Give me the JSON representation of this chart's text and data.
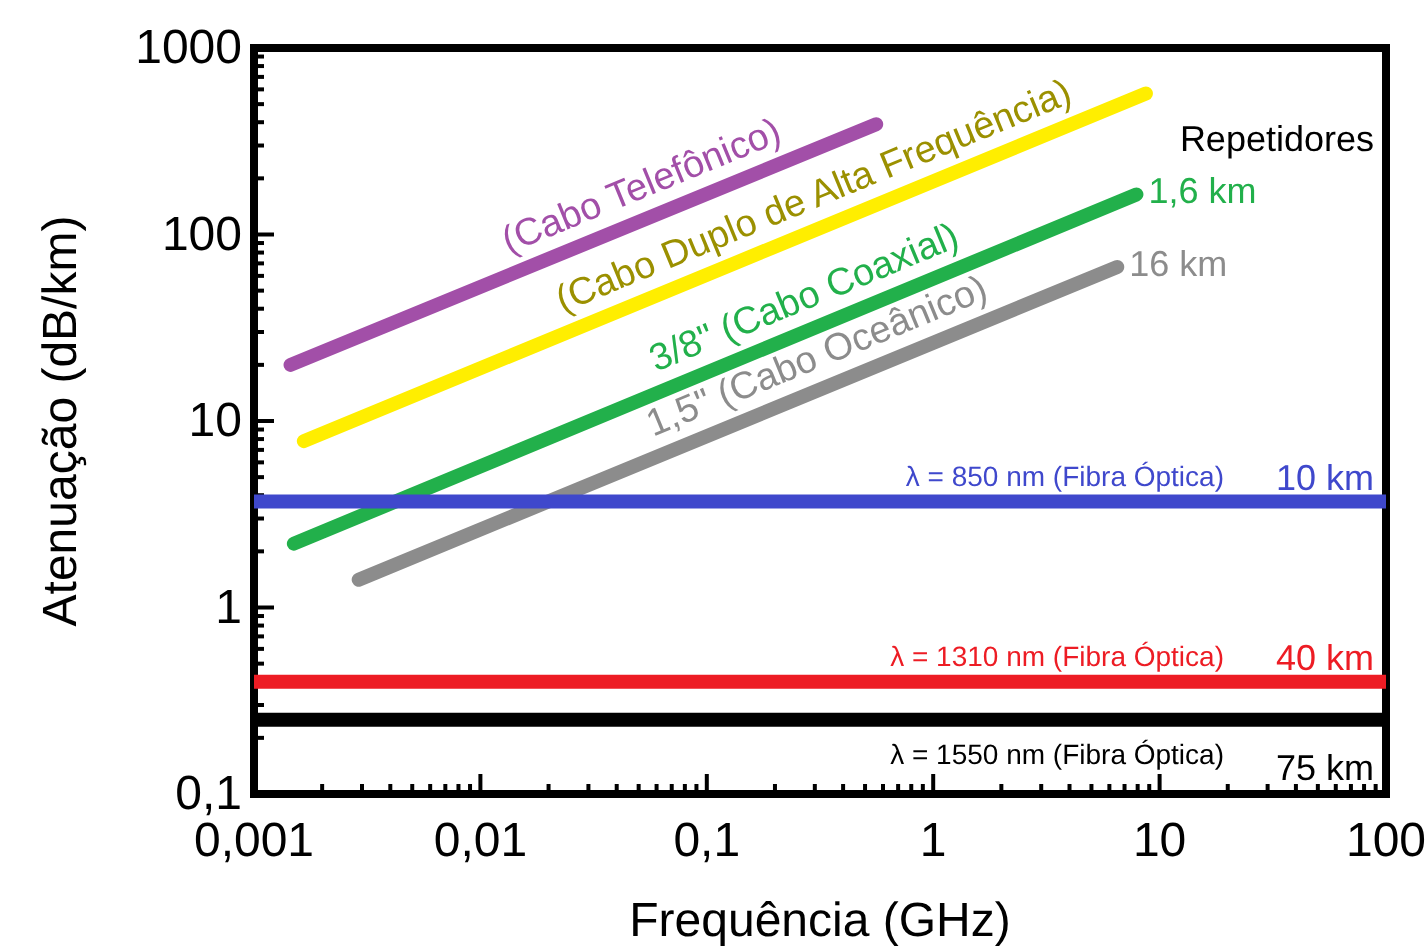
{
  "chart_data": {
    "type": "line",
    "xlabel": "Frequência (GHz)",
    "ylabel": "Atenuação (dB/km)",
    "log": "xy",
    "grid": false,
    "legend": false,
    "marker": "none",
    "line_style": "solid",
    "xlim": [
      0.001,
      100
    ],
    "ylim": [
      0.1,
      1000
    ],
    "xticks": [
      {
        "value": 0.001,
        "label": "0,001"
      },
      {
        "value": 0.01,
        "label": "0,01"
      },
      {
        "value": 0.1,
        "label": "0,1"
      },
      1,
      10,
      100
    ],
    "yticks": [
      {
        "value": 0.1,
        "label": "0,1"
      },
      1,
      10,
      100,
      1000
    ],
    "series": [
      {
        "name": "(Cabo Telefônico)",
        "color": "#a24fa8",
        "x": [
          0.00145,
          0.56
        ],
        "values": [
          20,
          390
        ]
      },
      {
        "name": "(Cabo Duplo de Alta Frequência)",
        "color": "#ffee00",
        "x": [
          0.00166,
          8.7
        ],
        "values": [
          7.8,
          570
        ]
      },
      {
        "name": "3/8\" (Cabo Coaxial)",
        "color": "#22b04b",
        "x": [
          0.0015,
          7.9
        ],
        "values": [
          2.2,
          164
        ]
      },
      {
        "name": "1,5\" (Cabo Oceânico)",
        "color": "#8c8c8c",
        "x": [
          0.0029,
          6.5
        ],
        "values": [
          1.41,
          67
        ]
      },
      {
        "name": "λ = 850 nm (Fibra Óptica)",
        "color": "#3f48cc",
        "x": [
          0.001,
          100
        ],
        "values": [
          3.7,
          3.7
        ]
      },
      {
        "name": "λ = 1310 nm (Fibra Óptica)",
        "color": "#ed1c24",
        "x": [
          0.001,
          100
        ],
        "values": [
          0.4,
          0.4
        ]
      },
      {
        "name": "λ = 1550 nm (Fibra Óptica)",
        "color": "#000000",
        "x": [
          0.001,
          100
        ],
        "values": [
          0.25,
          0.25
        ]
      }
    ],
    "annotations": [
      "Repetidores",
      "1,6 km",
      "16 km",
      "10 km",
      "40 km",
      "75 km"
    ]
  }
}
